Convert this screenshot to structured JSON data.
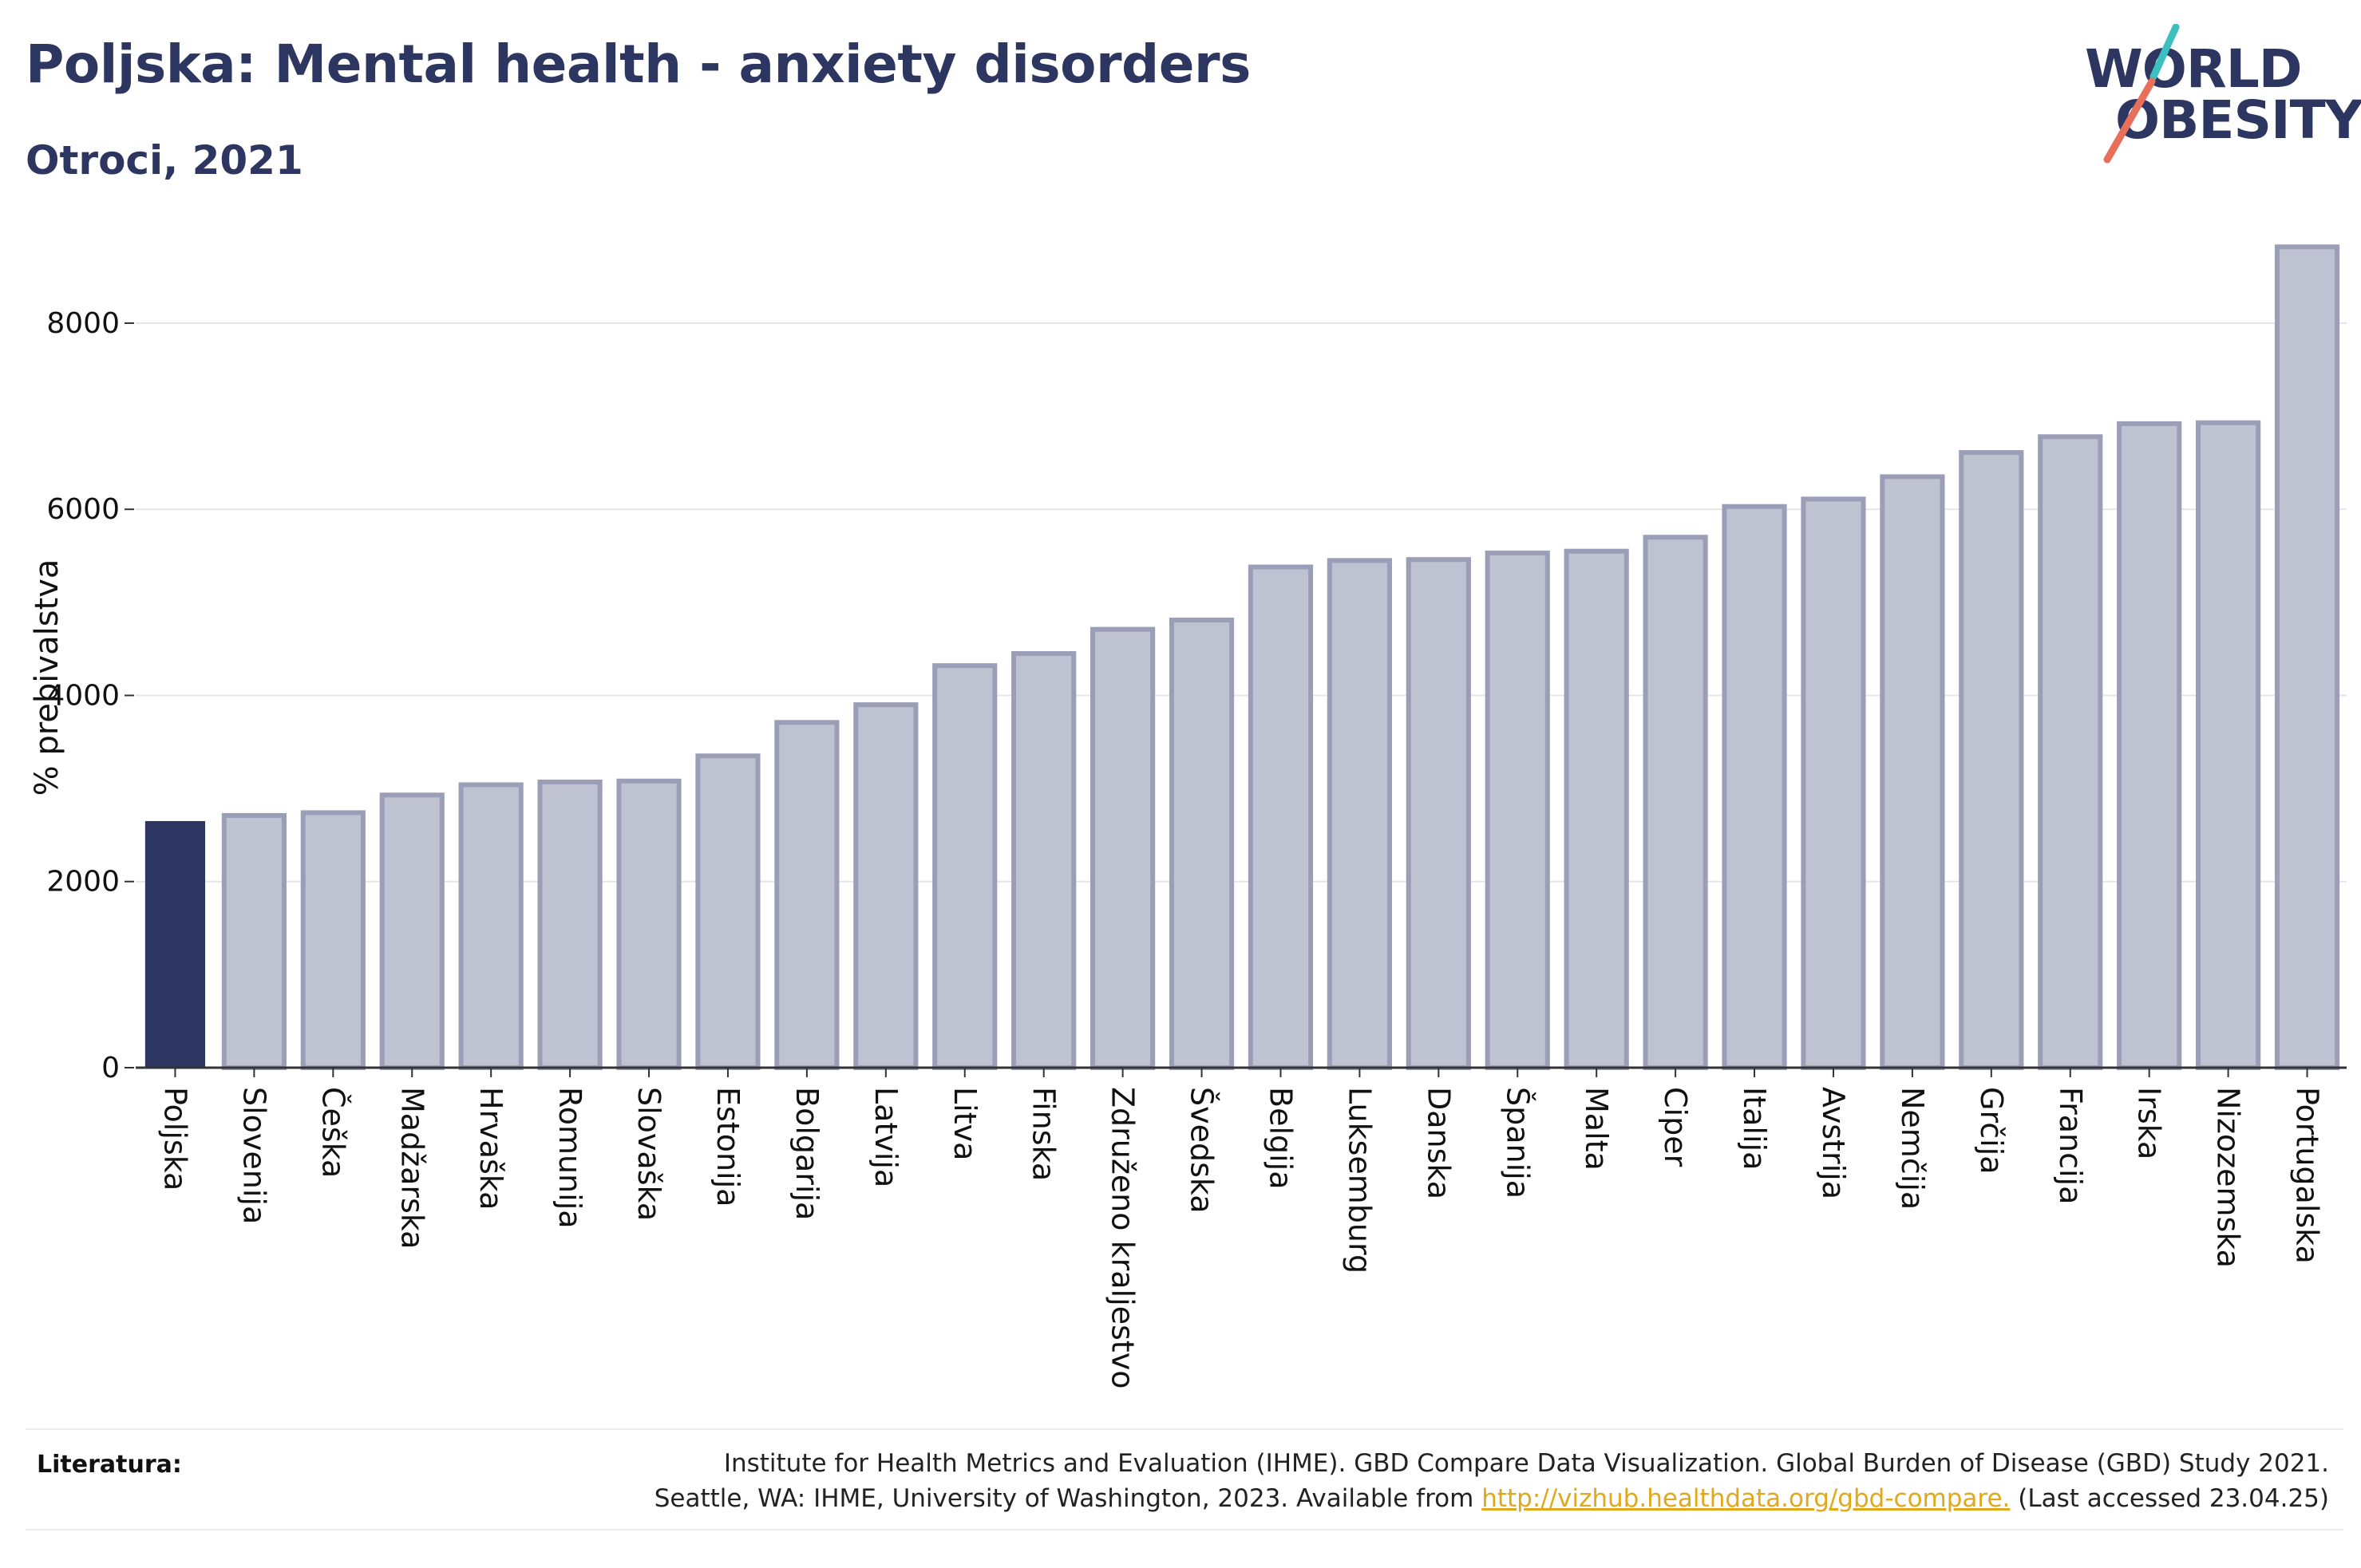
{
  "header": {
    "title": "Poljska: Mental health - anxiety disorders",
    "subtitle": "Otroci, 2021"
  },
  "logo": {
    "line1": "WORLD",
    "line2": "OBESITY"
  },
  "colors": {
    "highlight": "#2d3660",
    "bar_fill": "#bfc2d0",
    "bar_stroke": "#9a9fb7",
    "accent_teal": "#3bbfbf",
    "accent_red": "#e8705a"
  },
  "chart_data": {
    "type": "bar",
    "ylabel": "% prebivalstva",
    "ylim": [
      0,
      8900
    ],
    "yticks": [
      0,
      2000,
      4000,
      6000,
      8000
    ],
    "grid": true,
    "highlight_category": "Poljska",
    "categories": [
      "Poljska",
      "Slovenija",
      "Češka",
      "Madžarska",
      "Hrvaška",
      "Romunija",
      "Slovaška",
      "Estonija",
      "Bolgarija",
      "Latvija",
      "Litva",
      "Finska",
      "Združeno kraljestvo",
      "Švedska",
      "Belgija",
      "Luksemburg",
      "Danska",
      "Španija",
      "Malta",
      "Ciper",
      "Italija",
      "Avstrija",
      "Nemčija",
      "Grčija",
      "Francija",
      "Irska",
      "Nizozemska",
      "Portugalska"
    ],
    "values": [
      2650,
      2710,
      2740,
      2930,
      3040,
      3070,
      3080,
      3350,
      3710,
      3900,
      4320,
      4450,
      4710,
      4810,
      5380,
      5450,
      5460,
      5530,
      5550,
      5700,
      6030,
      6110,
      6350,
      6610,
      6780,
      6920,
      6930,
      8820
    ]
  },
  "footer": {
    "label": "Literatura:",
    "line1": "Institute for Health Metrics and Evaluation (IHME). GBD Compare Data Visualization. Global Burden of Disease (GBD) Study 2021.",
    "line2_prefix": "Seattle, WA: IHME, University of Washington, 2023. Available from ",
    "link": "http://vizhub.healthdata.org/gbd-compare.",
    "line2_suffix": " (Last accessed 23.04.25)"
  }
}
